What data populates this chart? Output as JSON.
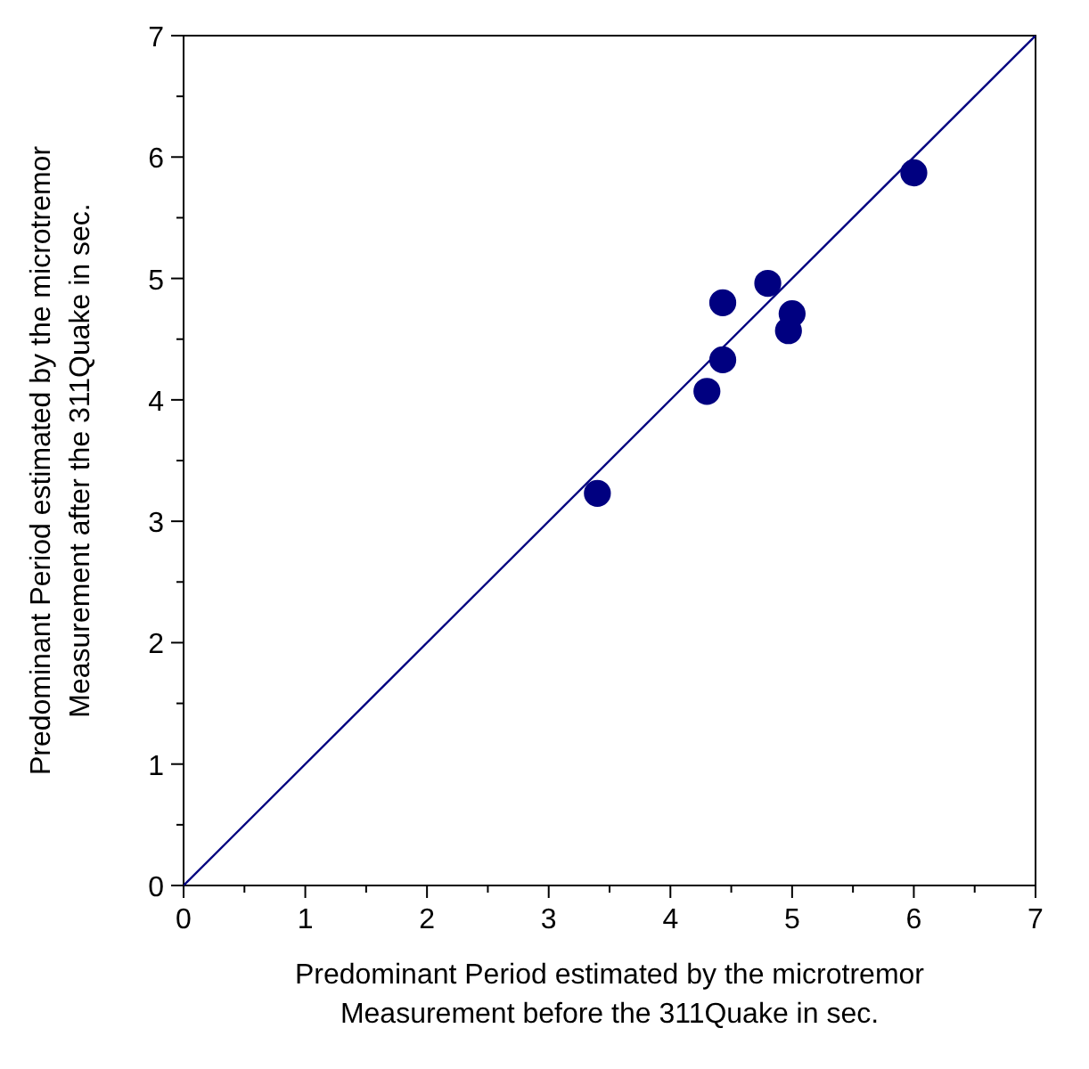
{
  "chart_data": {
    "type": "scatter",
    "xlabel": "Predominant Period estimated by the microtremor\nMeasurement before the 311Quake in sec.",
    "ylabel": "Predominant Period estimated by the microtremor\nMeasurement after the 311Quake in sec.",
    "xlim": [
      0,
      7
    ],
    "ylim": [
      0,
      7
    ],
    "xticks": [
      0,
      {
        "value": 0.5,
        "label": null
      },
      1,
      {
        "value": 1.5,
        "label": null
      },
      2,
      {
        "value": 2.5,
        "label": null
      },
      3,
      {
        "value": 3.5,
        "label": null
      },
      4,
      {
        "value": 4.5,
        "label": null
      },
      5,
      {
        "value": 5.5,
        "label": null
      },
      6,
      {
        "value": 6.5,
        "label": null
      },
      7
    ],
    "yticks": [
      0,
      {
        "value": 0.5,
        "label": null
      },
      1,
      {
        "value": 1.5,
        "label": null
      },
      2,
      {
        "value": 2.5,
        "label": null
      },
      3,
      {
        "value": 3.5,
        "label": null
      },
      4,
      {
        "value": 4.5,
        "label": null
      },
      5,
      {
        "value": 5.5,
        "label": null
      },
      6,
      {
        "value": 6.5,
        "label": null
      },
      7
    ],
    "grid": false,
    "series": [
      {
        "type": "line",
        "color": "#000080",
        "x": [
          0,
          7
        ],
        "values": [
          0,
          7
        ]
      },
      {
        "marker": "circle",
        "color": "#000080",
        "x": [
          3.4,
          4.3,
          4.43,
          4.43,
          4.8,
          4.97,
          5.0,
          6.0
        ],
        "values": [
          3.23,
          4.07,
          4.33,
          4.8,
          4.96,
          4.57,
          4.71,
          5.87
        ]
      }
    ]
  }
}
